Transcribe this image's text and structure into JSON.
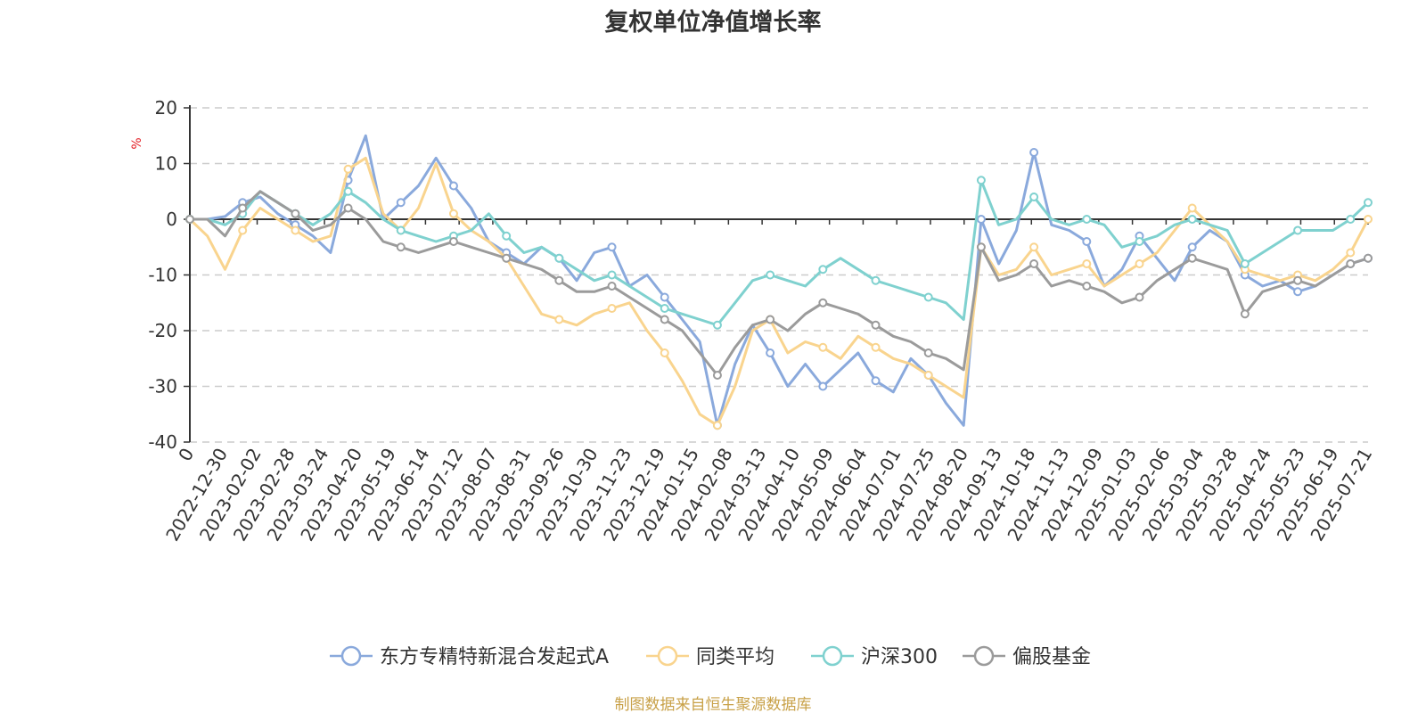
{
  "chart_data": {
    "type": "line",
    "title": "复权单位净值增长率",
    "ylabel": "%",
    "ylim": [
      -40,
      20
    ],
    "yticks": [
      20,
      10,
      0,
      -10,
      -20,
      -30,
      -40
    ],
    "grid": true,
    "legend_position": "bottom",
    "x_tick_labels": [
      "0",
      "2022-12-30",
      "2023-02-02",
      "2023-02-28",
      "2023-03-24",
      "2023-04-20",
      "2023-05-19",
      "2023-06-14",
      "2023-07-12",
      "2023-08-07",
      "2023-08-31",
      "2023-09-26",
      "2023-10-30",
      "2023-11-23",
      "2023-12-19",
      "2024-01-15",
      "2024-02-08",
      "2024-03-13",
      "2024-04-10",
      "2024-05-09",
      "2024-06-04",
      "2024-07-01",
      "2024-07-25",
      "2024-08-20",
      "2024-09-13",
      "2024-10-18",
      "2024-11-13",
      "2024-12-09",
      "2025-01-03",
      "2025-02-06",
      "2025-03-04",
      "2025-03-28",
      "2025-04-24",
      "2025-05-23",
      "2025-06-19",
      "2025-07-21"
    ],
    "series": [
      {
        "name": "东方专精特新混合发起式A",
        "color": "#8aa9dc",
        "values": [
          0,
          0,
          0.5,
          3,
          4,
          1,
          -1,
          -3,
          -6,
          7,
          15,
          0,
          3,
          6,
          11,
          6,
          2,
          -4,
          -6,
          -8,
          -5,
          -7,
          -11,
          -6,
          -5,
          -12,
          -10,
          -14,
          -18,
          -22,
          -37,
          -26,
          -19,
          -24,
          -30,
          -26,
          -30,
          -27,
          -24,
          -29,
          -31,
          -25,
          -28,
          -33,
          -37,
          0,
          -8,
          -2,
          12,
          -1,
          -2,
          -4,
          -12,
          -9,
          -3,
          -7,
          -11,
          -5,
          -2,
          -4,
          -10,
          -12,
          -11,
          -13,
          -12,
          -10,
          -8,
          -7
        ]
      },
      {
        "name": "同类平均",
        "color": "#f9d48e",
        "values": [
          0,
          -3,
          -9,
          -2,
          2,
          0,
          -2,
          -4,
          -3,
          9,
          11,
          1,
          -2,
          2,
          10,
          1,
          -2,
          -4,
          -7,
          -12,
          -17,
          -18,
          -19,
          -17,
          -16,
          -15,
          -20,
          -24,
          -29,
          -35,
          -37,
          -30,
          -20,
          -18,
          -24,
          -22,
          -23,
          -25,
          -21,
          -23,
          -25,
          -26,
          -28,
          -30,
          -32,
          -5,
          -10,
          -9,
          -5,
          -10,
          -9,
          -8,
          -12,
          -10,
          -8,
          -6,
          -2,
          2,
          -1,
          -4,
          -9,
          -10,
          -11,
          -10,
          -11,
          -9,
          -6,
          0
        ]
      },
      {
        "name": "沪深300",
        "color": "#7fd1cf",
        "values": [
          0,
          0,
          -1,
          1,
          5,
          3,
          1,
          -1,
          1,
          5,
          3,
          0,
          -2,
          -3,
          -4,
          -3,
          -2,
          1,
          -3,
          -6,
          -5,
          -7,
          -9,
          -11,
          -10,
          -12,
          -14,
          -16,
          -17,
          -18,
          -19,
          -15,
          -11,
          -10,
          -11,
          -12,
          -9,
          -7,
          -9,
          -11,
          -12,
          -13,
          -14,
          -15,
          -18,
          7,
          -1,
          0,
          4,
          0,
          -1,
          0,
          -1,
          -5,
          -4,
          -3,
          -1,
          0,
          -1,
          -2,
          -8,
          -6,
          -4,
          -2,
          -2,
          -2,
          0,
          3
        ]
      },
      {
        "name": "偏股基金",
        "color": "#9b9b9b",
        "values": [
          0,
          0,
          -3,
          2,
          5,
          3,
          1,
          -2,
          -1,
          2,
          0,
          -4,
          -5,
          -6,
          -5,
          -4,
          -5,
          -6,
          -7,
          -8,
          -9,
          -11,
          -13,
          -13,
          -12,
          -14,
          -16,
          -18,
          -20,
          -24,
          -28,
          -23,
          -19,
          -18,
          -20,
          -17,
          -15,
          -16,
          -17,
          -19,
          -21,
          -22,
          -24,
          -25,
          -27,
          -5,
          -11,
          -10,
          -8,
          -12,
          -11,
          -12,
          -13,
          -15,
          -14,
          -11,
          -9,
          -7,
          -8,
          -9,
          -17,
          -13,
          -12,
          -11,
          -12,
          -10,
          -8,
          -7
        ]
      }
    ]
  },
  "source_note": "制图数据来自恒生聚源数据库"
}
